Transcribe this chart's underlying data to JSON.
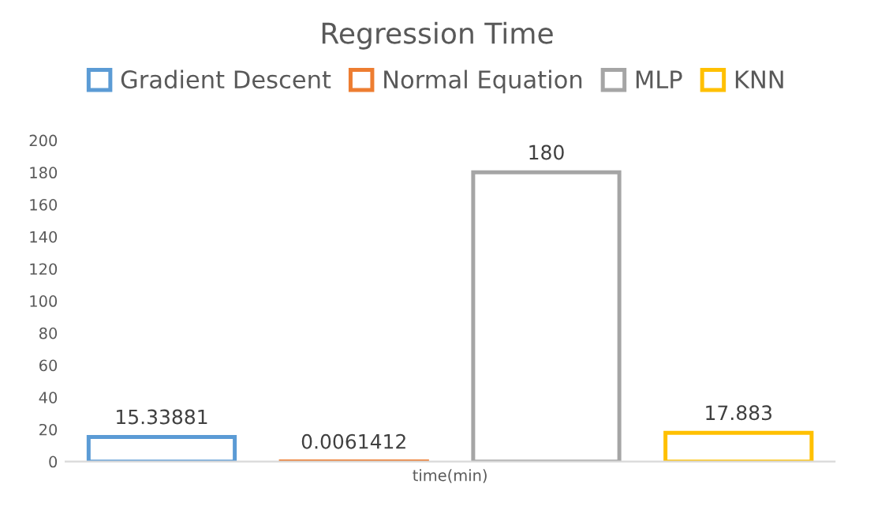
{
  "chart_data": {
    "type": "bar",
    "title": "Regression Time",
    "categories": [
      "time(min)"
    ],
    "series": [
      {
        "name": "Gradient Descent",
        "color": "#5b9bd5",
        "values": [
          15.33881
        ]
      },
      {
        "name": "Normal Equation",
        "color": "#ed7d31",
        "values": [
          0.0061412
        ]
      },
      {
        "name": "MLP",
        "color": "#a5a5a5",
        "values": [
          180
        ]
      },
      {
        "name": "KNN",
        "color": "#ffc000",
        "values": [
          17.883
        ]
      }
    ],
    "ylim": [
      0,
      200
    ],
    "yticks": [
      0,
      20,
      40,
      60,
      80,
      100,
      120,
      140,
      160,
      180,
      200
    ],
    "grid": false,
    "legend": "top",
    "data_labels": true
  }
}
